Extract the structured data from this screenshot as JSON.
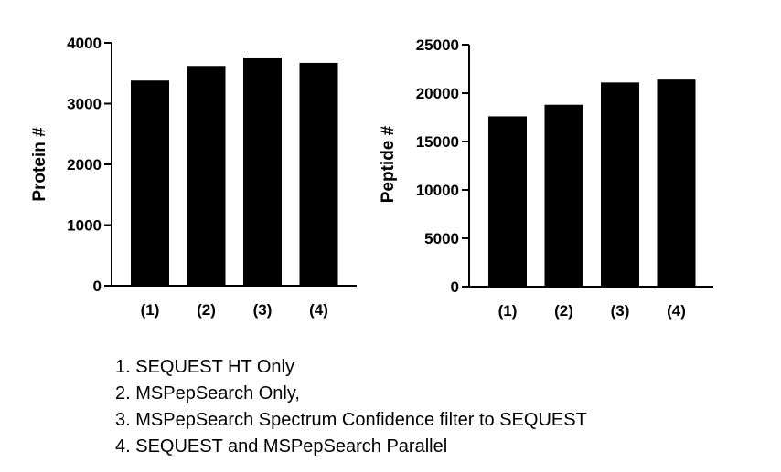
{
  "chart_data": [
    {
      "type": "bar",
      "categories": [
        "(1)",
        "(2)",
        "(3)",
        "(4)"
      ],
      "values": [
        3380,
        3620,
        3760,
        3670
      ],
      "ylabel": "Protein #",
      "xlabel": "",
      "ylim": [
        0,
        4000
      ],
      "yticks": [
        0,
        1000,
        2000,
        3000,
        4000
      ],
      "ytick_labels": [
        "0",
        "1000",
        "2000",
        "3000",
        "4000"
      ],
      "bar_color": "#000000",
      "grid": false
    },
    {
      "type": "bar",
      "categories": [
        "(1)",
        "(2)",
        "(3)",
        "(4)"
      ],
      "values": [
        17600,
        18800,
        21100,
        21400
      ],
      "ylabel": "Peptide #",
      "xlabel": "",
      "ylim": [
        0,
        25000
      ],
      "yticks": [
        0,
        5000,
        10000,
        15000,
        20000,
        25000
      ],
      "ytick_labels": [
        "0",
        "5000",
        "10000",
        "15000",
        "20000",
        "25000"
      ],
      "bar_color": "#000000",
      "grid": false
    }
  ],
  "legend": {
    "items": [
      "1. SEQUEST HT Only",
      "2. MSPepSearch Only,",
      "3. MSPepSearch Spectrum Confidence filter to SEQUEST",
      "4. SEQUEST and MSPepSearch Parallel"
    ]
  }
}
